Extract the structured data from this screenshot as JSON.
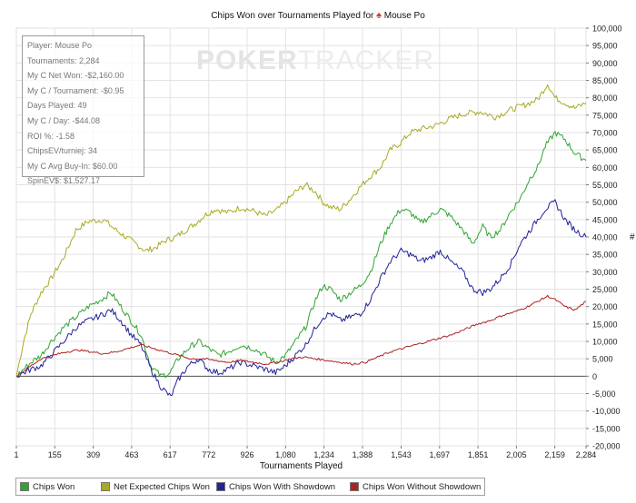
{
  "watermark": {
    "part1": "POKER",
    "part2": "TRACKER"
  },
  "stats": [
    "Player: Mouse Po",
    "Tournaments: 2,284",
    "My C Net Won: -$2,160.00",
    "My C / Tournament: -$0.95",
    "Days Played: 49",
    "My C / Day: -$44.08",
    "ROI %: -1.58",
    "ChipsEV/turniej: 34",
    "My C Avg Buy-In: $60.00",
    "SpinEV$: $1,527.17"
  ],
  "chart_data": {
    "type": "line",
    "title": "Chips Won over Tournaments Played for",
    "title_player": "Mouse Po",
    "title_icon": "poker-chip-icon",
    "xlabel": "Tournaments Played",
    "ylabel": "#",
    "xlim": [
      1,
      2284
    ],
    "ylim": [
      -20000,
      100000
    ],
    "x_ticks": [
      1,
      155,
      309,
      463,
      617,
      772,
      926,
      1080,
      1234,
      1388,
      1543,
      1697,
      1851,
      2005,
      2159,
      2284
    ],
    "x_tick_labels": [
      "1",
      "155",
      "309",
      "463",
      "617",
      "772",
      "926",
      "1,080",
      "1,234",
      "1,388",
      "1,543",
      "1,697",
      "1,851",
      "2,005",
      "2,159",
      "2,284"
    ],
    "y_ticks": [
      -20000,
      -15000,
      -10000,
      -5000,
      0,
      5000,
      10000,
      15000,
      20000,
      25000,
      30000,
      35000,
      40000,
      45000,
      50000,
      55000,
      60000,
      65000,
      70000,
      75000,
      80000,
      85000,
      90000,
      95000,
      100000
    ],
    "y_tick_labels": [
      "-20,000",
      "-15,000",
      "-10,000",
      "-5,000",
      "0",
      "5,000",
      "10,000",
      "15,000",
      "20,000",
      "25,000",
      "30,000",
      "35,000",
      "40,000",
      "45,000",
      "50,000",
      "55,000",
      "60,000",
      "65,000",
      "70,000",
      "75,000",
      "80,000",
      "85,000",
      "90,000",
      "95,000",
      "100,000"
    ],
    "grid": true,
    "legend_position": "bottom",
    "series": [
      {
        "name": "Net Expected Chips Won",
        "color": "#aaaa22",
        "x": [
          1,
          30,
          60,
          100,
          140,
          190,
          240,
          290,
          350,
          400,
          440,
          480,
          520,
          560,
          600,
          640,
          680,
          720,
          760,
          800,
          850,
          900,
          950,
          1000,
          1050,
          1080,
          1120,
          1160,
          1200,
          1230,
          1260,
          1300,
          1340,
          1380,
          1420,
          1460,
          1500,
          1540,
          1580,
          1620,
          1680,
          1740,
          1800,
          1860,
          1920,
          1980,
          2040,
          2090,
          2130,
          2160,
          2200,
          2240,
          2284
        ],
        "values": [
          0,
          10000,
          18000,
          24000,
          28000,
          34000,
          42000,
          44500,
          45000,
          42000,
          40000,
          38000,
          36000,
          37000,
          39000,
          40000,
          42000,
          44000,
          46500,
          48000,
          47000,
          48500,
          47500,
          46000,
          48000,
          50000,
          53000,
          55000,
          53000,
          50000,
          48500,
          48000,
          51000,
          54500,
          57500,
          60000,
          65000,
          67000,
          70000,
          71000,
          72000,
          74000,
          75500,
          76000,
          74500,
          76500,
          78000,
          79500,
          84000,
          80000,
          78500,
          77000,
          78500
        ]
      },
      {
        "name": "Chips Won",
        "color": "#2fa52f",
        "x": [
          1,
          30,
          60,
          100,
          140,
          190,
          240,
          290,
          340,
          380,
          420,
          460,
          500,
          540,
          580,
          617,
          650,
          690,
          730,
          770,
          810,
          850,
          900,
          950,
          1000,
          1040,
          1080,
          1120,
          1160,
          1200,
          1230,
          1260,
          1300,
          1340,
          1380,
          1420,
          1460,
          1500,
          1543,
          1580,
          1620,
          1660,
          1700,
          1740,
          1790,
          1830,
          1870,
          1900,
          1940,
          1980,
          2020,
          2060,
          2090,
          2120,
          2160,
          2200,
          2240,
          2284
        ],
        "values": [
          0,
          2000,
          4000,
          6000,
          10000,
          14000,
          17000,
          20000,
          22000,
          24000,
          20000,
          16000,
          12000,
          3000,
          0,
          1000,
          5000,
          8000,
          10000,
          8000,
          6000,
          7000,
          9000,
          8000,
          6000,
          4000,
          6000,
          10000,
          14000,
          22000,
          26000,
          25000,
          22000,
          24000,
          26000,
          30000,
          38000,
          44000,
          48000,
          47000,
          44000,
          46000,
          48000,
          46000,
          42000,
          38000,
          43000,
          40000,
          42000,
          47000,
          51000,
          57000,
          60000,
          66000,
          70000,
          68000,
          64000,
          62000
        ]
      },
      {
        "name": "Chips Won With Showdown",
        "color": "#222299",
        "x": [
          1,
          30,
          60,
          100,
          140,
          190,
          240,
          290,
          340,
          380,
          420,
          460,
          500,
          540,
          580,
          620,
          650,
          690,
          730,
          770,
          810,
          850,
          900,
          950,
          1000,
          1040,
          1080,
          1120,
          1160,
          1200,
          1230,
          1260,
          1300,
          1340,
          1380,
          1420,
          1460,
          1500,
          1543,
          1580,
          1620,
          1660,
          1700,
          1740,
          1790,
          1830,
          1870,
          1900,
          1940,
          1980,
          2020,
          2060,
          2090,
          2120,
          2160,
          2200,
          2240,
          2284
        ],
        "values": [
          0,
          1000,
          2000,
          3000,
          6000,
          10000,
          14000,
          16000,
          17500,
          19000,
          16000,
          12000,
          9000,
          2000,
          -3000,
          -6000,
          -1000,
          3000,
          5000,
          2000,
          1000,
          2000,
          4000,
          3000,
          2000,
          1000,
          3000,
          6000,
          9000,
          14000,
          17000,
          18000,
          16000,
          17000,
          18000,
          22000,
          28000,
          33000,
          36000,
          35000,
          33000,
          34000,
          36000,
          33000,
          30000,
          25000,
          24000,
          25000,
          28000,
          32000,
          38000,
          42000,
          45000,
          48000,
          50000,
          45000,
          42000,
          40000
        ]
      },
      {
        "name": "Chips Won Without Showdown",
        "color": "#aa2222",
        "x": [
          1,
          50,
          100,
          150,
          200,
          250,
          300,
          350,
          400,
          450,
          500,
          550,
          600,
          650,
          700,
          750,
          800,
          850,
          900,
          950,
          1000,
          1050,
          1100,
          1150,
          1200,
          1250,
          1300,
          1350,
          1400,
          1450,
          1500,
          1550,
          1600,
          1650,
          1700,
          1750,
          1800,
          1850,
          1900,
          1950,
          2000,
          2050,
          2090,
          2130,
          2160,
          2200,
          2240,
          2284
        ],
        "values": [
          0,
          2500,
          5000,
          6000,
          7000,
          7500,
          7000,
          6500,
          7000,
          8000,
          9000,
          8000,
          7000,
          6000,
          5000,
          5000,
          4500,
          4000,
          4500,
          4000,
          3500,
          4000,
          5000,
          5500,
          5000,
          4500,
          4000,
          3500,
          4000,
          5500,
          7000,
          8000,
          9000,
          10000,
          11000,
          12000,
          13500,
          15000,
          16000,
          17500,
          18500,
          20000,
          21500,
          23000,
          22000,
          20000,
          19000,
          21500
        ]
      }
    ]
  }
}
